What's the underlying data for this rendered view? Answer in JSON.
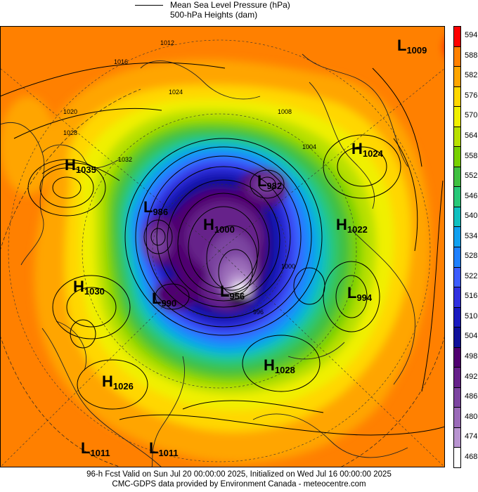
{
  "legend": {
    "line1": "Mean Sea Level Pressure (hPa)",
    "line2": "500-hPa Heights (dam)"
  },
  "colorbar": {
    "levels": [
      {
        "label": "594",
        "color": "#ff0000"
      },
      {
        "label": "588",
        "color": "#ff8000"
      },
      {
        "label": "582",
        "color": "#ffa500"
      },
      {
        "label": "576",
        "color": "#ffd700"
      },
      {
        "label": "570",
        "color": "#f0f000"
      },
      {
        "label": "564",
        "color": "#b8e000"
      },
      {
        "label": "558",
        "color": "#78d000"
      },
      {
        "label": "552",
        "color": "#40c040"
      },
      {
        "label": "546",
        "color": "#28c878"
      },
      {
        "label": "540",
        "color": "#10c0c0"
      },
      {
        "label": "534",
        "color": "#10a0f0"
      },
      {
        "label": "528",
        "color": "#1e80ff"
      },
      {
        "label": "522",
        "color": "#3c5cff"
      },
      {
        "label": "516",
        "color": "#3030e0"
      },
      {
        "label": "510",
        "color": "#1a1ac0"
      },
      {
        "label": "504",
        "color": "#10109a"
      },
      {
        "label": "498",
        "color": "#500070"
      },
      {
        "label": "492",
        "color": "#66208a"
      },
      {
        "label": "486",
        "color": "#7c44a0"
      },
      {
        "label": "480",
        "color": "#9a6ab8"
      },
      {
        "label": "474",
        "color": "#b894d0"
      },
      {
        "label": "468",
        "color": "#ffffff"
      }
    ]
  },
  "pressure_centers": [
    {
      "type": "L",
      "value": "1009"
    },
    {
      "type": "H",
      "value": "1035"
    },
    {
      "type": "H",
      "value": "1024"
    },
    {
      "type": "L",
      "value": "982"
    },
    {
      "type": "L",
      "value": "986"
    },
    {
      "type": "H",
      "value": "1000"
    },
    {
      "type": "H",
      "value": "1022"
    },
    {
      "type": "H",
      "value": "1030"
    },
    {
      "type": "L",
      "value": "990"
    },
    {
      "type": "L",
      "value": "956"
    },
    {
      "type": "L",
      "value": "994"
    },
    {
      "type": "H",
      "value": "1028"
    },
    {
      "type": "H",
      "value": "1026"
    },
    {
      "type": "L",
      "value": "1011"
    },
    {
      "type": "L",
      "value": "1011"
    }
  ],
  "isobar_labels": [
    "1012",
    "1016",
    "1020",
    "1024",
    "1028",
    "1032",
    "1008",
    "1004",
    "1000",
    "996"
  ],
  "footer": {
    "line1": "96-h Fcst Valid on Sun Jul 20 00:00:00 2025, Initialized on Wed Jul 16 00:00:00 2025",
    "line2": "CMC-GDPS data provided by Environment Canada - meteocentre.com"
  }
}
